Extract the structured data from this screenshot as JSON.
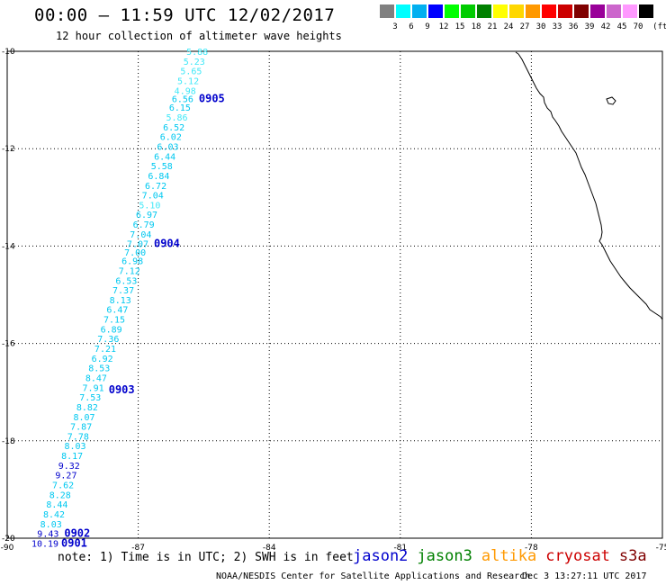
{
  "title": "00:00 – 11:59 UTC 12/02/2017",
  "subtitle": "12 hour collection of altimeter wave heights",
  "colorbar": {
    "unit": "(ft)",
    "bins": [
      {
        "label": "3",
        "color": "#808080"
      },
      {
        "label": "6",
        "color": "#00ffff"
      },
      {
        "label": "9",
        "color": "#00b0f0"
      },
      {
        "label": "12",
        "color": "#0000ff"
      },
      {
        "label": "15",
        "color": "#00ff00"
      },
      {
        "label": "18",
        "color": "#00cc00"
      },
      {
        "label": "21",
        "color": "#008000"
      },
      {
        "label": "24",
        "color": "#ffff00"
      },
      {
        "label": "27",
        "color": "#ffd700"
      },
      {
        "label": "30",
        "color": "#ff9900"
      },
      {
        "label": "33",
        "color": "#ff0000"
      },
      {
        "label": "36",
        "color": "#cc0000"
      },
      {
        "label": "39",
        "color": "#800000"
      },
      {
        "label": "42",
        "color": "#990099"
      },
      {
        "label": "45",
        "color": "#cc66cc"
      },
      {
        "label": "70",
        "color": "#ff99ff"
      },
      {
        "label": "",
        "color": "#000000"
      }
    ]
  },
  "axes": {
    "lon_ticks": [
      "-90",
      "-87",
      "-84",
      "-81",
      "-78",
      "-75"
    ],
    "lat_ticks": [
      "-10",
      "-12",
      "-14",
      "-16",
      "-18",
      "-20"
    ]
  },
  "track": {
    "color_cyan": "#00c8f0",
    "color_light": "#40e8f8",
    "color_blue": "#0000cc",
    "points": [
      {
        "lat": -10.0,
        "v": "5.88",
        "c": "light"
      },
      {
        "lat": -10.2,
        "v": "5.23",
        "c": "light"
      },
      {
        "lat": -10.4,
        "v": "5.65",
        "c": "light"
      },
      {
        "lat": -10.6,
        "v": "5.12",
        "c": "light"
      },
      {
        "lat": -10.8,
        "v": "4.98",
        "c": "light"
      },
      {
        "lat": -10.97,
        "v": "6.56",
        "c": "cyan"
      },
      {
        "lat": -11.15,
        "v": "6.15",
        "c": "cyan"
      },
      {
        "lat": -11.35,
        "v": "5.86",
        "c": "light"
      },
      {
        "lat": -11.55,
        "v": "6.52",
        "c": "cyan"
      },
      {
        "lat": -11.75,
        "v": "6.02",
        "c": "cyan"
      },
      {
        "lat": -11.95,
        "v": "6.03",
        "c": "cyan"
      },
      {
        "lat": -12.15,
        "v": "6.44",
        "c": "cyan"
      },
      {
        "lat": -12.35,
        "v": "5.58",
        "c": "cyan"
      },
      {
        "lat": -12.55,
        "v": "6.84",
        "c": "cyan"
      },
      {
        "lat": -12.75,
        "v": "6.72",
        "c": "cyan"
      },
      {
        "lat": -12.95,
        "v": "7.04",
        "c": "cyan"
      },
      {
        "lat": -13.15,
        "v": "5.10",
        "c": "light"
      },
      {
        "lat": -13.35,
        "v": "6.97",
        "c": "cyan"
      },
      {
        "lat": -13.55,
        "v": "6.79",
        "c": "cyan"
      },
      {
        "lat": -13.75,
        "v": "7.04",
        "c": "cyan"
      },
      {
        "lat": -13.95,
        "v": "7.07",
        "c": "cyan"
      },
      {
        "lat": -14.12,
        "v": "7.00",
        "c": "cyan"
      },
      {
        "lat": -14.3,
        "v": "6.98",
        "c": "cyan"
      },
      {
        "lat": -14.5,
        "v": "7.12",
        "c": "cyan"
      },
      {
        "lat": -14.7,
        "v": "6.53",
        "c": "cyan"
      },
      {
        "lat": -14.9,
        "v": "7.37",
        "c": "cyan"
      },
      {
        "lat": -15.1,
        "v": "8.13",
        "c": "cyan"
      },
      {
        "lat": -15.3,
        "v": "6.47",
        "c": "cyan"
      },
      {
        "lat": -15.5,
        "v": "7.15",
        "c": "cyan"
      },
      {
        "lat": -15.7,
        "v": "6.89",
        "c": "cyan"
      },
      {
        "lat": -15.9,
        "v": "7.36",
        "c": "cyan"
      },
      {
        "lat": -16.1,
        "v": "7.21",
        "c": "cyan"
      },
      {
        "lat": -16.3,
        "v": "6.92",
        "c": "cyan"
      },
      {
        "lat": -16.5,
        "v": "8.53",
        "c": "cyan"
      },
      {
        "lat": -16.7,
        "v": "8.47",
        "c": "cyan"
      },
      {
        "lat": -16.9,
        "v": "7.91",
        "c": "cyan"
      },
      {
        "lat": -17.1,
        "v": "7.53",
        "c": "cyan"
      },
      {
        "lat": -17.3,
        "v": "8.82",
        "c": "cyan"
      },
      {
        "lat": -17.5,
        "v": "8.07",
        "c": "cyan"
      },
      {
        "lat": -17.7,
        "v": "7.87",
        "c": "cyan"
      },
      {
        "lat": -17.9,
        "v": "7.78",
        "c": "cyan"
      },
      {
        "lat": -18.1,
        "v": "8.03",
        "c": "cyan"
      },
      {
        "lat": -18.3,
        "v": "8.17",
        "c": "cyan"
      },
      {
        "lat": -18.5,
        "v": "9.32",
        "c": "blue"
      },
      {
        "lat": -18.7,
        "v": "9.27",
        "c": "blue"
      },
      {
        "lat": -18.9,
        "v": "7.62",
        "c": "cyan"
      },
      {
        "lat": -19.1,
        "v": "8.28",
        "c": "cyan"
      },
      {
        "lat": -19.3,
        "v": "8.44",
        "c": "cyan"
      },
      {
        "lat": -19.5,
        "v": "8.42",
        "c": "cyan"
      },
      {
        "lat": -19.7,
        "v": "8.03",
        "c": "cyan"
      },
      {
        "lat": -19.9,
        "v": "9.43",
        "c": "blue"
      },
      {
        "lat": -20.1,
        "v": "10.19",
        "c": "blue"
      }
    ],
    "times": [
      {
        "label": "0905",
        "lat": -10.97
      },
      {
        "label": "0904",
        "lat": -13.95
      },
      {
        "label": "0903",
        "lat": -16.95
      },
      {
        "label": "0902",
        "lat": -19.9
      },
      {
        "label": "0901",
        "lat": -20.1
      }
    ]
  },
  "note": "note: 1) Time is in UTC; 2) SWH is in feet",
  "legend": [
    {
      "name": "jason2",
      "color": "#0000cc"
    },
    {
      "name": "jason3",
      "color": "#008000"
    },
    {
      "name": "altika",
      "color": "#ff9900"
    },
    {
      "name": "cryosat",
      "color": "#cc0000"
    },
    {
      "name": "s3a",
      "color": "#800000"
    }
  ],
  "credit": "NOAA/NESDIS Center for Satellite Applications and Research",
  "timestamp": "Dec  3 13:27:11 UTC 2017"
}
